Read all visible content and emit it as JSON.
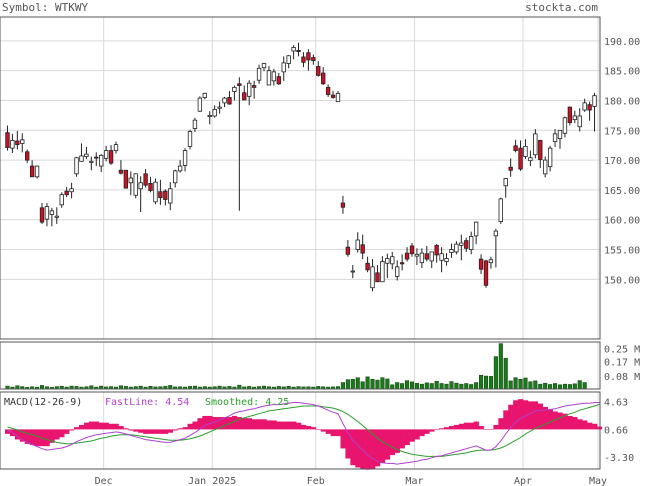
{
  "header": {
    "symbol": "Symbol: WTKWY",
    "site": "stockta.com"
  },
  "colors": {
    "up": "#ffffff",
    "down": "#cc1122",
    "volume": "#1a7a1a",
    "hist": "#e8146e",
    "fast": "#b040d0",
    "smooth": "#2aa02a",
    "grid": "#d9d9d9",
    "frame": "#555555"
  },
  "chart_data": [
    {
      "type": "candlestick",
      "x_ticks": [
        "Dec",
        "Jan 2025",
        "Feb",
        "Mar",
        "Apr",
        "May"
      ],
      "y_ticks": [
        "190.00",
        "185.00",
        "180.00",
        "175.00",
        "170.00",
        "165.00",
        "160.00",
        "155.00",
        "150.00"
      ],
      "ylim": [
        140,
        194
      ],
      "grid": true,
      "candles": [
        [
          174.6,
          175.8,
          171.6,
          172.1
        ],
        [
          172.0,
          174.4,
          171.2,
          173.3
        ],
        [
          173.2,
          174.9,
          171.8,
          172.6
        ],
        [
          172.8,
          174.5,
          171.3,
          173.4
        ],
        [
          171.4,
          171.8,
          169.5,
          170.0
        ],
        [
          169.0,
          170.0,
          167.2,
          167.2
        ],
        [
          167.2,
          169.1,
          166.9,
          169.0
        ],
        [
          162.0,
          162.8,
          159.3,
          159.6
        ],
        [
          160.1,
          162.8,
          158.9,
          162.2
        ],
        [
          160.9,
          162.0,
          158.9,
          161.5
        ],
        [
          160.4,
          162.1,
          159.3,
          160.6
        ],
        [
          162.5,
          164.6,
          162.0,
          164.2
        ],
        [
          164.8,
          165.5,
          163.8,
          164.2
        ],
        [
          164.7,
          166.2,
          163.6,
          165.2
        ],
        [
          167.7,
          170.5,
          167.2,
          170.4
        ],
        [
          169.8,
          172.8,
          169.7,
          170.7
        ],
        [
          170.6,
          172.2,
          170.2,
          171.0
        ],
        [
          169.6,
          170.6,
          168.3,
          169.8
        ],
        [
          170.5,
          171.3,
          169.0,
          170.4
        ],
        [
          169.0,
          171.0,
          168.0,
          170.8
        ],
        [
          170.3,
          172.4,
          169.8,
          171.6
        ],
        [
          171.6,
          172.5,
          169.2,
          169.5
        ],
        [
          171.6,
          173.1,
          171.1,
          172.6
        ],
        [
          168.3,
          170.0,
          167.6,
          167.8
        ],
        [
          168.3,
          168.3,
          165.3,
          165.3
        ],
        [
          166.2,
          168.1,
          164.1,
          167.0
        ],
        [
          164.1,
          167.8,
          163.6,
          167.7
        ],
        [
          165.2,
          167.3,
          161.3,
          166.2
        ],
        [
          167.7,
          168.5,
          165.4,
          165.8
        ],
        [
          166.1,
          167.2,
          164.6,
          164.9
        ],
        [
          163.0,
          166.9,
          162.6,
          166.3
        ],
        [
          164.7,
          166.7,
          162.5,
          163.7
        ],
        [
          164.8,
          165.1,
          162.4,
          163.4
        ],
        [
          162.8,
          166.3,
          161.6,
          165.2
        ],
        [
          166.2,
          168.4,
          165.4,
          168.2
        ],
        [
          168.2,
          170.0,
          167.9,
          169.0
        ],
        [
          169.1,
          172.0,
          168.1,
          171.6
        ],
        [
          172.3,
          175.1,
          171.8,
          174.8
        ],
        [
          175.3,
          177.1,
          174.7,
          176.7
        ],
        [
          178.2,
          180.7,
          178.1,
          180.4
        ],
        [
          180.5,
          181.3,
          180.2,
          181.2
        ],
        [
          177.3,
          178.2,
          176.0,
          177.5
        ],
        [
          177.4,
          179.2,
          177.1,
          178.5
        ],
        [
          178.7,
          179.8,
          177.8,
          178.9
        ],
        [
          179.6,
          180.6,
          178.9,
          180.4
        ],
        [
          180.5,
          181.6,
          179.3,
          179.4
        ],
        [
          181.5,
          182.5,
          180.0,
          182.2
        ],
        [
          182.8,
          183.9,
          161.5,
          182.5
        ],
        [
          181.3,
          182.5,
          180.0,
          180.1
        ],
        [
          180.7,
          183.4,
          179.2,
          182.9
        ],
        [
          182.5,
          183.3,
          180.3,
          182.2
        ],
        [
          183.4,
          186.0,
          182.8,
          185.4
        ],
        [
          185.5,
          186.3,
          184.9,
          186.2
        ],
        [
          182.6,
          185.8,
          182.6,
          185.0
        ],
        [
          183.3,
          185.3,
          182.5,
          184.8
        ],
        [
          184.0,
          184.6,
          182.6,
          182.8
        ],
        [
          184.8,
          187.4,
          183.3,
          186.3
        ],
        [
          186.2,
          187.6,
          185.4,
          187.5
        ],
        [
          188.3,
          189.3,
          186.9,
          188.9
        ],
        [
          188.4,
          189.7,
          187.4,
          188.2
        ],
        [
          187.3,
          188.1,
          185.6,
          186.4
        ],
        [
          188.0,
          188.6,
          185.0,
          186.8
        ],
        [
          187.2,
          187.7,
          186.0,
          186.7
        ],
        [
          185.7,
          186.6,
          184.0,
          184.2
        ],
        [
          184.6,
          185.6,
          182.6,
          182.8
        ],
        [
          182.2,
          182.7,
          180.6,
          181.0
        ],
        [
          180.9,
          181.6,
          180.3,
          180.5
        ],
        [
          179.8,
          181.6,
          179.8,
          181.2
        ],
        [
          162.8,
          164.0,
          161.0,
          162.1
        ],
        [
          155.4,
          156.6,
          153.8,
          154.2
        ],
        [
          151.4,
          152.4,
          150.2,
          151.4
        ],
        [
          155.0,
          157.9,
          154.5,
          156.6
        ],
        [
          155.8,
          157.5,
          153.4,
          154.4
        ],
        [
          152.7,
          153.8,
          151.2,
          151.6
        ],
        [
          148.6,
          153.4,
          148.0,
          152.1
        ],
        [
          151.1,
          152.4,
          149.6,
          149.6
        ],
        [
          149.6,
          153.9,
          149.6,
          153.0
        ],
        [
          152.7,
          154.3,
          150.2,
          153.5
        ],
        [
          152.6,
          154.6,
          151.7,
          153.8
        ],
        [
          150.5,
          153.2,
          149.8,
          152.1
        ],
        [
          152.8,
          154.2,
          151.5,
          152.6
        ],
        [
          154.4,
          155.4,
          153.0,
          153.4
        ],
        [
          155.6,
          156.1,
          153.8,
          154.3
        ],
        [
          153.9,
          155.2,
          152.4,
          154.2
        ],
        [
          152.8,
          155.2,
          151.9,
          154.4
        ],
        [
          154.3,
          155.6,
          153.0,
          153.4
        ],
        [
          153.1,
          154.6,
          151.9,
          154.6
        ],
        [
          155.7,
          155.9,
          152.8,
          154.1
        ],
        [
          153.2,
          155.4,
          151.2,
          154.3
        ],
        [
          153.0,
          154.4,
          152.3,
          153.5
        ],
        [
          154.5,
          156.0,
          153.6,
          155.0
        ],
        [
          154.6,
          156.4,
          154.2,
          155.9
        ],
        [
          155.7,
          157.5,
          153.2,
          156.1
        ],
        [
          156.5,
          157.0,
          154.6,
          155.2
        ],
        [
          155.0,
          158.0,
          154.2,
          157.2
        ],
        [
          157.3,
          159.7,
          155.9,
          159.6
        ],
        [
          153.4,
          154.2,
          150.9,
          151.7
        ],
        [
          153.1,
          153.3,
          148.6,
          149.0
        ],
        [
          152.8,
          153.8,
          151.8,
          153.3
        ],
        [
          157.3,
          158.5,
          152.0,
          158.1
        ],
        [
          159.7,
          163.7,
          159.3,
          163.5
        ],
        [
          165.7,
          167.0,
          163.7,
          166.9
        ],
        [
          168.8,
          170.3,
          167.2,
          168.3
        ],
        [
          172.4,
          173.4,
          171.3,
          171.6
        ],
        [
          172.0,
          173.3,
          168.2,
          168.5
        ],
        [
          170.6,
          173.5,
          170.2,
          172.3
        ],
        [
          169.9,
          171.6,
          169.0,
          170.4
        ],
        [
          170.9,
          175.2,
          170.3,
          174.4
        ],
        [
          173.3,
          173.4,
          168.7,
          170.1
        ],
        [
          167.7,
          170.6,
          167.1,
          170.0
        ],
        [
          168.9,
          172.4,
          168.1,
          172.0
        ],
        [
          173.1,
          175.2,
          172.2,
          174.4
        ],
        [
          173.6,
          175.0,
          171.9,
          175.0
        ],
        [
          174.5,
          177.3,
          173.8,
          177.1
        ],
        [
          178.9,
          178.9,
          175.8,
          176.3
        ],
        [
          176.8,
          178.3,
          176.2,
          177.4
        ],
        [
          175.6,
          178.7,
          174.8,
          177.4
        ],
        [
          178.4,
          180.3,
          178.1,
          179.6
        ],
        [
          179.3,
          179.8,
          176.6,
          178.4
        ],
        [
          179.0,
          181.3,
          174.8,
          180.8
        ]
      ],
      "volume_ticks": [
        "0.25 M",
        "0.17 M",
        "0.08 M"
      ],
      "volume": [
        0.018,
        0.012,
        0.02,
        0.015,
        0.01,
        0.014,
        0.011,
        0.022,
        0.014,
        0.01,
        0.015,
        0.017,
        0.012,
        0.018,
        0.016,
        0.012,
        0.014,
        0.02,
        0.012,
        0.018,
        0.013,
        0.015,
        0.012,
        0.02,
        0.016,
        0.012,
        0.015,
        0.018,
        0.012,
        0.017,
        0.013,
        0.014,
        0.016,
        0.022,
        0.013,
        0.014,
        0.012,
        0.016,
        0.018,
        0.012,
        0.015,
        0.012,
        0.014,
        0.018,
        0.013,
        0.016,
        0.012,
        0.024,
        0.013,
        0.016,
        0.012,
        0.015,
        0.018,
        0.014,
        0.012,
        0.016,
        0.013,
        0.017,
        0.012,
        0.015,
        0.013,
        0.014,
        0.012,
        0.016,
        0.014,
        0.012,
        0.013,
        0.015,
        0.04,
        0.058,
        0.06,
        0.07,
        0.045,
        0.075,
        0.06,
        0.055,
        0.07,
        0.062,
        0.026,
        0.04,
        0.034,
        0.052,
        0.044,
        0.035,
        0.03,
        0.038,
        0.034,
        0.048,
        0.034,
        0.03,
        0.046,
        0.036,
        0.03,
        0.034,
        0.028,
        0.04,
        0.085,
        0.08,
        0.078,
        0.2,
        0.28,
        0.19,
        0.05,
        0.07,
        0.06,
        0.068,
        0.045,
        0.05,
        0.03,
        0.036,
        0.028,
        0.034,
        0.026,
        0.03,
        0.028,
        0.032,
        0.052,
        0.04
      ],
      "macd": {
        "title": "MACD(12-26-9)",
        "fast_label": "FastLine: 4.54",
        "smooth_label": "Smoothed: 4.25",
        "y_ticks": [
          "4.63",
          "0.66",
          "-3.30"
        ],
        "fast": [
          0.6,
          0.2,
          -0.3,
          -0.8,
          -1.2,
          -1.5,
          -1.8,
          -2.1,
          -2.3,
          -2.2,
          -2.1,
          -2.0,
          -1.8,
          -1.5,
          -1.1,
          -0.8,
          -0.5,
          -0.3,
          -0.1,
          0.0,
          0.1,
          0.2,
          0.3,
          0.2,
          0.0,
          -0.2,
          -0.4,
          -0.6,
          -0.8,
          -0.9,
          -1.0,
          -1.1,
          -1.2,
          -1.2,
          -1.0,
          -0.8,
          -0.6,
          -0.2,
          0.2,
          0.7,
          1.2,
          1.5,
          1.7,
          2.0,
          2.3,
          2.6,
          3.0,
          3.2,
          3.3,
          3.5,
          3.6,
          3.8,
          4.0,
          4.1,
          4.2,
          4.2,
          4.3,
          4.4,
          4.5,
          4.5,
          4.4,
          4.3,
          4.2,
          4.0,
          3.7,
          3.4,
          3.1,
          2.9,
          1.5,
          0.2,
          -0.9,
          -1.6,
          -2.3,
          -3.0,
          -3.5,
          -3.9,
          -4.1,
          -4.2,
          -4.2,
          -4.3,
          -4.2,
          -4.1,
          -4.0,
          -3.9,
          -3.7,
          -3.6,
          -3.4,
          -3.2,
          -3.1,
          -2.9,
          -2.7,
          -2.5,
          -2.3,
          -2.1,
          -1.9,
          -1.7,
          -2.0,
          -2.3,
          -2.3,
          -1.8,
          -1.0,
          0.0,
          0.9,
          1.7,
          2.2,
          2.6,
          2.9,
          3.3,
          3.4,
          3.4,
          3.5,
          3.6,
          3.8,
          4.0,
          4.1,
          4.2,
          4.3,
          4.4,
          4.4,
          4.5,
          4.5
        ],
        "smooth": [
          1.0,
          0.8,
          0.6,
          0.3,
          0.1,
          -0.1,
          -0.3,
          -0.6,
          -0.8,
          -1.0,
          -1.2,
          -1.3,
          -1.4,
          -1.4,
          -1.3,
          -1.2,
          -1.1,
          -1.0,
          -0.8,
          -0.6,
          -0.5,
          -0.3,
          -0.2,
          -0.1,
          -0.1,
          -0.1,
          -0.2,
          -0.3,
          -0.4,
          -0.5,
          -0.6,
          -0.7,
          -0.8,
          -0.9,
          -0.9,
          -0.9,
          -0.8,
          -0.7,
          -0.5,
          -0.3,
          0.0,
          0.3,
          0.6,
          0.9,
          1.2,
          1.5,
          1.8,
          2.1,
          2.3,
          2.5,
          2.7,
          2.9,
          3.1,
          3.3,
          3.4,
          3.5,
          3.6,
          3.7,
          3.8,
          3.9,
          4.0,
          4.0,
          4.0,
          4.0,
          3.9,
          3.8,
          3.7,
          3.5,
          3.2,
          2.8,
          2.3,
          1.8,
          1.2,
          0.6,
          0.0,
          -0.6,
          -1.1,
          -1.5,
          -1.9,
          -2.2,
          -2.5,
          -2.7,
          -2.9,
          -3.0,
          -3.1,
          -3.2,
          -3.2,
          -3.2,
          -3.2,
          -3.1,
          -3.0,
          -2.9,
          -2.8,
          -2.7,
          -2.5,
          -2.4,
          -2.3,
          -2.3,
          -2.3,
          -2.2,
          -2.0,
          -1.7,
          -1.3,
          -0.9,
          -0.5,
          0.0,
          0.4,
          0.8,
          1.1,
          1.4,
          1.7,
          2.0,
          2.3,
          2.6,
          2.9,
          3.1,
          3.4,
          3.6,
          3.8,
          4.0,
          4.25
        ],
        "ylim": [
          -5,
          6
        ]
      }
    }
  ]
}
